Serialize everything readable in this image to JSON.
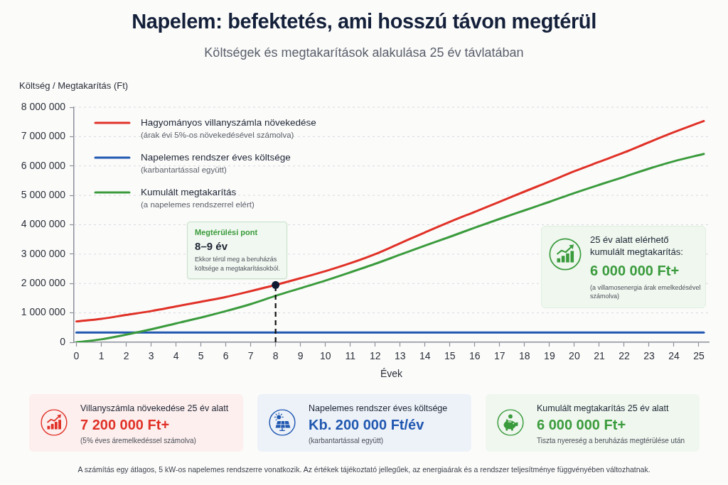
{
  "chart_data": {
    "type": "line",
    "title": "Napelem: befektetés, ami hosszú távon megtérül",
    "subtitle": "Költségek és megtakarítások alakulása 25 év távlatában",
    "xlabel": "Évek",
    "ylabel": "Költség / Megtakarítás (Ft)",
    "x": [
      0,
      1,
      2,
      3,
      4,
      5,
      6,
      7,
      8,
      9,
      10,
      11,
      12,
      13,
      14,
      15,
      16,
      17,
      18,
      19,
      20,
      21,
      22,
      23,
      24,
      25.2
    ],
    "series": [
      {
        "name": "Hagyományos villanyszámla növekedése\n(árak évi 5%-os növekedésével számolva)",
        "color": "#e03127",
        "values": [
          710000,
          800000,
          930000,
          1060000,
          1220000,
          1380000,
          1540000,
          1740000,
          1950000,
          2180000,
          2420000,
          2690000,
          3000000,
          3370000,
          3740000,
          4100000,
          4440000,
          4780000,
          5130000,
          5470000,
          5820000,
          6140000,
          6460000,
          6810000,
          7150000,
          7530000
        ]
      },
      {
        "name": "Napelemes rendszer éves költsége\n(karbantartással együtt)",
        "color": "#2057b0",
        "x": [
          0,
          25.2
        ],
        "values": [
          330000,
          330000
        ]
      },
      {
        "name": "Kumulált megtakarítás\n(a napelemes rendszerrel elért)",
        "color": "#3a9b3c",
        "values": [
          0,
          100000,
          260000,
          440000,
          640000,
          840000,
          1060000,
          1300000,
          1580000,
          1840000,
          2100000,
          2380000,
          2670000,
          2980000,
          3290000,
          3590000,
          3900000,
          4200000,
          4490000,
          4780000,
          5080000,
          5360000,
          5630000,
          5910000,
          6160000,
          6410000
        ]
      },
      {
        "type": "line",
        "color": "#111111",
        "x": [
          8,
          8
        ],
        "values": [
          0,
          1950000
        ],
        "line_style": "dashed"
      },
      {
        "type": "scatter",
        "color": "#101a33",
        "x": [
          8
        ],
        "values": [
          1950000
        ],
        "marker": "circle"
      }
    ],
    "xlim": [
      -0.1,
      25.4
    ],
    "xticks": [
      0,
      1,
      2,
      3,
      4,
      5,
      6,
      7,
      8,
      9,
      10,
      11,
      12,
      13,
      14,
      15,
      16,
      17,
      18,
      19,
      20,
      21,
      22,
      23,
      24,
      25
    ],
    "ylim": [
      0,
      8000000
    ],
    "yticks": [
      0,
      {
        "value": 1000000,
        "label": "1 000 000"
      },
      {
        "value": 2000000,
        "label": "2 000 000"
      },
      {
        "value": 3000000,
        "label": "3 000 000"
      },
      {
        "value": 4000000,
        "label": "4 000 000"
      },
      {
        "value": 5000000,
        "label": "5 000 000"
      },
      {
        "value": 6000000,
        "label": "6 000 000"
      },
      {
        "value": 7000000,
        "label": "7 000 000"
      },
      {
        "value": 8000000,
        "label": "8 000 000"
      }
    ],
    "grid": "y",
    "legend": "top left",
    "annotations": [
      {
        "text": "Megtérülési pont\n8–9 év\nEkkor térül meg a beruházás\nköltsége a megtakarításokból.",
        "x": 8,
        "y": 1950000
      },
      "25 év alatt elérhető kumulált megtakarítás:\n6 000 000 Ft+\n(a villamosenergia árak emelkedésével számolva)",
      "Villanyszámla növekedése 25 év alatt\n7 200 000 Ft+\n(5% éves áremelkedéssel számolva)",
      "Napelemes rendszer éves költsége\nKb. 200 000 Ft/év\n(karbantartással együtt)",
      "Kumulált megtakarítás 25 év alatt\n6 000 000 Ft+\nTiszta nyereség a beruházás megtérülése után",
      "A számítás egy átlagos, 5 kW-os napelemes rendszerre vonatkozik. Az értékek tájékoztató jellegűek, az energiaárak és a rendszer teljesítménye függvényében változhatnak."
    ]
  }
}
